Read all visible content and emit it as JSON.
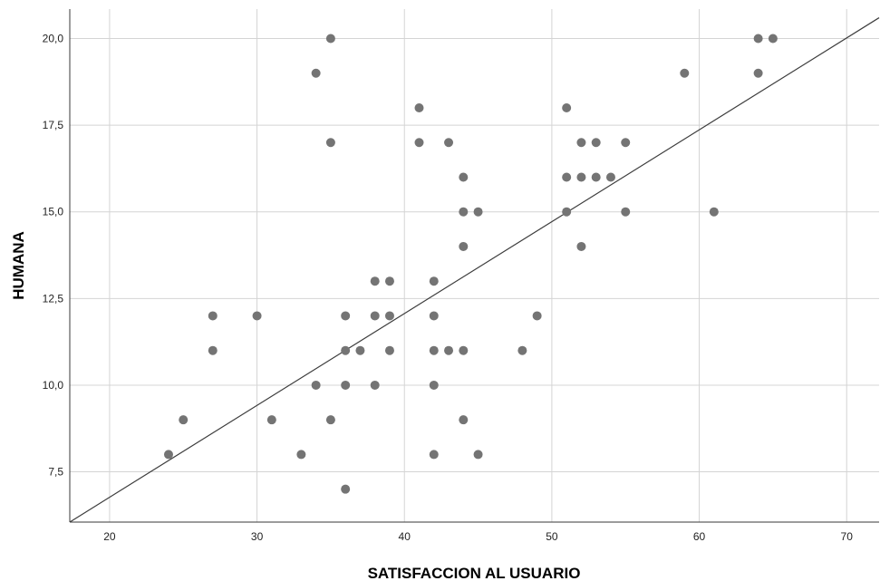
{
  "chart_data": {
    "type": "scatter",
    "xlabel": "SATISFACCION AL USUARIO",
    "ylabel": "HUMANA",
    "xlim": [
      17.3,
      72.2
    ],
    "ylim": [
      6.05,
      20.85
    ],
    "x_ticks": [
      20,
      30,
      40,
      50,
      60,
      70
    ],
    "y_ticks": [
      7.5,
      10.0,
      12.5,
      15.0,
      17.5,
      20.0
    ],
    "x_tick_labels": [
      "20",
      "30",
      "40",
      "50",
      "60",
      "70"
    ],
    "y_tick_labels": [
      "7,5",
      "10,0",
      "12,5",
      "15,0",
      "17,5",
      "20,0"
    ],
    "grid": true,
    "points": [
      {
        "x": 24,
        "y": 8
      },
      {
        "x": 25,
        "y": 9
      },
      {
        "x": 27,
        "y": 12
      },
      {
        "x": 27,
        "y": 11
      },
      {
        "x": 30,
        "y": 12
      },
      {
        "x": 31,
        "y": 9
      },
      {
        "x": 33,
        "y": 8
      },
      {
        "x": 34,
        "y": 19
      },
      {
        "x": 34,
        "y": 10
      },
      {
        "x": 35,
        "y": 20
      },
      {
        "x": 35,
        "y": 17
      },
      {
        "x": 35,
        "y": 9
      },
      {
        "x": 36,
        "y": 12
      },
      {
        "x": 36,
        "y": 11
      },
      {
        "x": 36,
        "y": 10
      },
      {
        "x": 36,
        "y": 7
      },
      {
        "x": 37,
        "y": 11
      },
      {
        "x": 38,
        "y": 13
      },
      {
        "x": 38,
        "y": 12
      },
      {
        "x": 38,
        "y": 10
      },
      {
        "x": 39,
        "y": 13
      },
      {
        "x": 39,
        "y": 12
      },
      {
        "x": 39,
        "y": 11
      },
      {
        "x": 41,
        "y": 18
      },
      {
        "x": 41,
        "y": 17
      },
      {
        "x": 42,
        "y": 13
      },
      {
        "x": 42,
        "y": 12
      },
      {
        "x": 42,
        "y": 11
      },
      {
        "x": 42,
        "y": 10
      },
      {
        "x": 42,
        "y": 8
      },
      {
        "x": 43,
        "y": 17
      },
      {
        "x": 43,
        "y": 11
      },
      {
        "x": 44,
        "y": 16
      },
      {
        "x": 44,
        "y": 15
      },
      {
        "x": 44,
        "y": 14
      },
      {
        "x": 44,
        "y": 11
      },
      {
        "x": 44,
        "y": 9
      },
      {
        "x": 45,
        "y": 15
      },
      {
        "x": 45,
        "y": 8
      },
      {
        "x": 48,
        "y": 11
      },
      {
        "x": 49,
        "y": 12
      },
      {
        "x": 51,
        "y": 18
      },
      {
        "x": 51,
        "y": 16
      },
      {
        "x": 51,
        "y": 15
      },
      {
        "x": 52,
        "y": 17
      },
      {
        "x": 52,
        "y": 16
      },
      {
        "x": 52,
        "y": 14
      },
      {
        "x": 53,
        "y": 17
      },
      {
        "x": 53,
        "y": 16
      },
      {
        "x": 54,
        "y": 16
      },
      {
        "x": 55,
        "y": 17
      },
      {
        "x": 55,
        "y": 15
      },
      {
        "x": 59,
        "y": 19
      },
      {
        "x": 61,
        "y": 15
      },
      {
        "x": 64,
        "y": 20
      },
      {
        "x": 64,
        "y": 19
      },
      {
        "x": 65,
        "y": 20
      }
    ],
    "fit_line": {
      "x1": 17.3,
      "y1": 6.05,
      "x2": 72.2,
      "y2": 20.6
    },
    "colors": {
      "point": "#747474",
      "fit_line": "#3c3c3c",
      "grid": "#d4d4d4",
      "axis": "#3a3a3a"
    }
  }
}
